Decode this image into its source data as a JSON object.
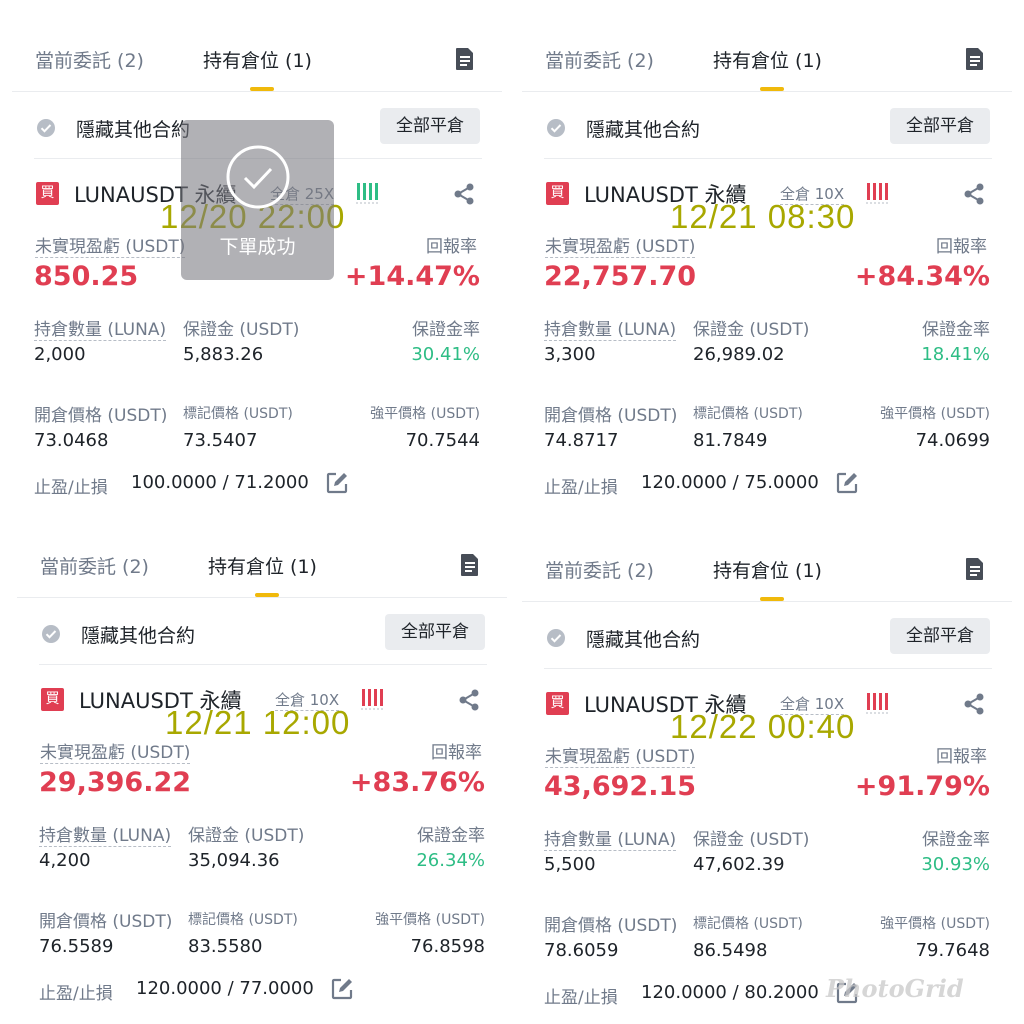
{
  "tabs": {
    "orders": "當前委託 (2)",
    "positions": "持有倉位 (1)"
  },
  "hide_others_label": "隱藏其他合約",
  "close_all_label": "全部平倉",
  "labels": {
    "pnl": "未實現盈虧 (USDT)",
    "roe": "回報率",
    "size": "持倉數量 (LUNA)",
    "margin": "保證金 (USDT)",
    "margin_ratio": "保證金率",
    "entry": "開倉價格 (USDT)",
    "mark": "標記價格 (USDT)",
    "liq": "強平價格 (USDT)",
    "tpsl": "止盈/止損"
  },
  "buy_badge": "買",
  "symbol": "LUNAUSDT 永續",
  "toast": {
    "text": "下單成功"
  },
  "watermark": "PhotoGrid",
  "panels": [
    {
      "timestamp": "12/20 22:00",
      "margin_mode": "全倉 25X",
      "pnl": "850.25",
      "roe": "+14.47%",
      "size": "2,000",
      "margin": "5,883.26",
      "margin_ratio": "30.41%",
      "entry": "73.0468",
      "mark": "73.5407",
      "liq": "70.7544",
      "tpsl": "100.0000 / 71.2000"
    },
    {
      "timestamp": "12/21 08:30",
      "margin_mode": "全倉 10X",
      "pnl": "22,757.70",
      "roe": "+84.34%",
      "size": "3,300",
      "margin": "26,989.02",
      "margin_ratio": "18.41%",
      "entry": "74.8717",
      "mark": "81.7849",
      "liq": "74.0699",
      "tpsl": "120.0000 / 75.0000"
    },
    {
      "timestamp": "12/21 12:00",
      "margin_mode": "全倉 10X",
      "pnl": "29,396.22",
      "roe": "+83.76%",
      "size": "4,200",
      "margin": "35,094.36",
      "margin_ratio": "26.34%",
      "entry": "76.5589",
      "mark": "83.5580",
      "liq": "76.8598",
      "tpsl": "120.0000 / 77.0000"
    },
    {
      "timestamp": "12/22 00:40",
      "margin_mode": "全倉 10X",
      "pnl": "43,692.15",
      "roe": "+91.79%",
      "size": "5,500",
      "margin": "47,602.39",
      "margin_ratio": "30.93%",
      "entry": "78.6059",
      "mark": "86.5498",
      "liq": "79.7648",
      "tpsl": "120.0000 / 80.2000"
    }
  ],
  "colors": {
    "buy": "#e03e52",
    "profit": "#e03e52",
    "margin_ratio": "#2ebd85",
    "accent": "#f0b90b",
    "stamp": "#a8a800"
  }
}
